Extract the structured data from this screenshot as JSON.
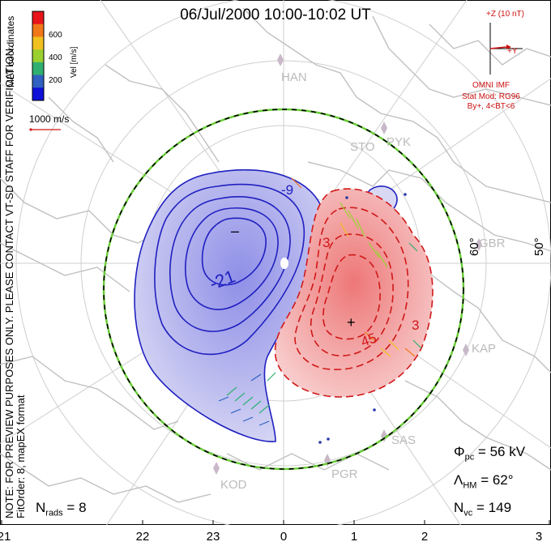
{
  "title": "06/Jul/2000 10:00-10:02 UT",
  "notes": {
    "preview": "NOTE: FOR PREVIEW PURPOSES ONLY. PLEASE CONTACT VT-SD STAFF FOR VERIFICATION.",
    "fit": "FitOrder: 8, mapEX format",
    "coords": "MLT coordinates"
  },
  "colorbar": {
    "label": "Vel [m/s]",
    "ticks": [
      "600",
      "400",
      "200"
    ],
    "colors": [
      "#e8141a",
      "#f07818",
      "#f0c020",
      "#9ad030",
      "#30b070",
      "#3060c0",
      "#1010d8"
    ]
  },
  "scale": {
    "label": "1000 m/s"
  },
  "imf": {
    "z_label": "+Z (10 nT)",
    "y_label": "+Y",
    "source": "OMNI IMF",
    "model": "Stat Mod: RG96",
    "condition": "By+, 4<BT<6"
  },
  "stats": {
    "phi_pc": "56 kV",
    "lambda_hm": "62°",
    "n_vc": "149",
    "n_rads": "8"
  },
  "x_axis_ticks": [
    "21",
    "22",
    "23",
    "0",
    "1",
    "2",
    "3"
  ],
  "lat_labels": [
    "60°",
    "50°"
  ],
  "contour_labels": [
    "-9",
    "-21",
    "3",
    "45",
    "3"
  ],
  "stations": [
    "HAN",
    "STO",
    "PYK",
    "GBR",
    "KAP",
    "SAS",
    "PGR",
    "KOD"
  ],
  "markers": {
    "min": "–",
    "max": "+"
  },
  "colors": {
    "negative_cell": "#2020c0",
    "positive_cell": "#d01818",
    "boundary_green": "#66cc33",
    "coast": "#c0c0c0"
  }
}
